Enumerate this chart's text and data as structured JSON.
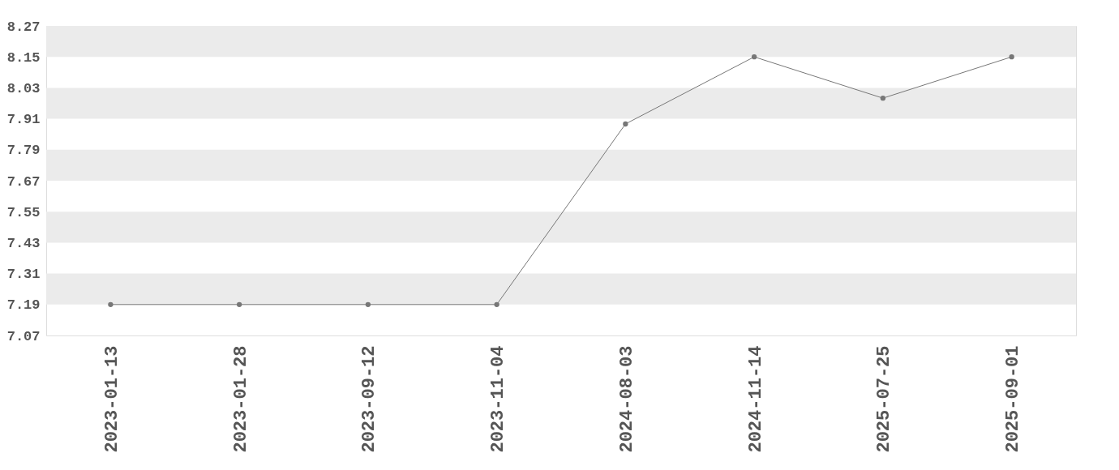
{
  "chart_data": {
    "type": "line",
    "categories": [
      "2023-01-13",
      "2023-01-28",
      "2023-09-12",
      "2023-11-04",
      "2024-08-03",
      "2024-11-14",
      "2025-07-25",
      "2025-09-01"
    ],
    "series": [
      {
        "color": "#777777",
        "values": [
          7.19,
          7.19,
          7.19,
          7.19,
          7.89,
          8.15,
          7.99,
          8.15
        ]
      }
    ],
    "ylim": [
      7.07,
      8.27
    ],
    "yticks": [
      7.07,
      7.19,
      7.31,
      7.43,
      7.55,
      7.67,
      7.79,
      7.91,
      8.03,
      8.15,
      8.27
    ],
    "bands": [
      {
        "axis": "y",
        "from": 8.15,
        "to": 8.27,
        "color": "#ebebeb"
      },
      {
        "axis": "y",
        "from": 7.91,
        "to": 8.03,
        "color": "#ebebeb"
      },
      {
        "axis": "y",
        "from": 7.67,
        "to": 7.79,
        "color": "#ebebeb"
      },
      {
        "axis": "y",
        "from": 7.43,
        "to": 7.55,
        "color": "#ebebeb"
      },
      {
        "axis": "y",
        "from": 7.19,
        "to": 7.31,
        "color": "#ebebeb"
      }
    ],
    "grid": false,
    "marker": "circle",
    "line_style": "solid"
  }
}
